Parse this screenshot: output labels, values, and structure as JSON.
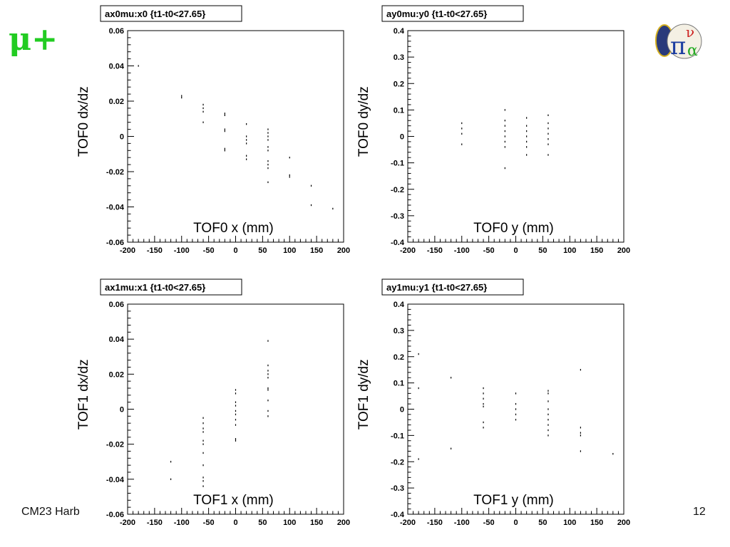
{
  "slide": {
    "title": "μ+",
    "footer_left": "CM23 Harb",
    "page_number": "12",
    "logo": "mice-pion-logo"
  },
  "chart_data": [
    {
      "type": "scatter",
      "title": "ax0mu:x0 {t1-t0<27.65}",
      "xlabel": "TOF0 x (mm)",
      "ylabel": "TOF0 dx/dz",
      "xlim": [
        -200,
        200
      ],
      "ylim": [
        -0.06,
        0.06
      ],
      "xticks": [
        -200,
        -150,
        -100,
        -50,
        0,
        50,
        100,
        150,
        200
      ],
      "xtick_labels": [
        "-200",
        "-150",
        "-100",
        "-50",
        "0",
        "50",
        "100",
        "150",
        "200"
      ],
      "yticks": [
        -0.06,
        -0.04,
        -0.02,
        0,
        0.02,
        0.04,
        0.06
      ],
      "ytick_labels": [
        "-0.06",
        "-0.04",
        "-0.02",
        "0",
        "0.02",
        "0.04",
        "0.06"
      ],
      "points": [
        [
          -180,
          0.04
        ],
        [
          -100,
          0.023
        ],
        [
          -100,
          0.022
        ],
        [
          -60,
          0.018
        ],
        [
          -60,
          0.016
        ],
        [
          -60,
          0.014
        ],
        [
          -60,
          0.008
        ],
        [
          -20,
          0.013
        ],
        [
          -20,
          0.012
        ],
        [
          -20,
          0.004
        ],
        [
          -20,
          0.003
        ],
        [
          -20,
          -0.007
        ],
        [
          -20,
          -0.008
        ],
        [
          20,
          0.007
        ],
        [
          20,
          0.0
        ],
        [
          20,
          -0.002
        ],
        [
          20,
          -0.004
        ],
        [
          20,
          -0.011
        ],
        [
          20,
          -0.013
        ],
        [
          60,
          0.004
        ],
        [
          60,
          0.002
        ],
        [
          60,
          0.0
        ],
        [
          60,
          -0.002
        ],
        [
          60,
          -0.006
        ],
        [
          60,
          -0.008
        ],
        [
          60,
          -0.014
        ],
        [
          60,
          -0.016
        ],
        [
          60,
          -0.018
        ],
        [
          60,
          -0.026
        ],
        [
          100,
          -0.012
        ],
        [
          100,
          -0.022
        ],
        [
          100,
          -0.023
        ],
        [
          140,
          -0.028
        ],
        [
          140,
          -0.039
        ],
        [
          180,
          -0.041
        ]
      ]
    },
    {
      "type": "scatter",
      "title": "ay0mu:y0 {t1-t0<27.65}",
      "xlabel": "TOF0 y (mm)",
      "ylabel": "TOF0 dy/dz",
      "xlim": [
        -200,
        200
      ],
      "ylim": [
        -0.4,
        0.4
      ],
      "xticks": [
        -200,
        -150,
        -100,
        -50,
        0,
        50,
        100,
        150,
        200
      ],
      "xtick_labels": [
        "-200",
        "-150",
        "-100",
        "-50",
        "0",
        "50",
        "100",
        "150",
        "200"
      ],
      "yticks": [
        -0.4,
        -0.3,
        -0.2,
        -0.1,
        0,
        0.1,
        0.2,
        0.3,
        0.4
      ],
      "ytick_labels": [
        "-0.4",
        "-0.3",
        "-0.2",
        "-0.1",
        "0",
        "0.1",
        "0.2",
        "0.3",
        "0.4"
      ],
      "points": [
        [
          -100,
          0.05
        ],
        [
          -100,
          0.03
        ],
        [
          -100,
          0.01
        ],
        [
          -100,
          -0.03
        ],
        [
          -20,
          0.1
        ],
        [
          -20,
          0.06
        ],
        [
          -20,
          0.04
        ],
        [
          -20,
          0.02
        ],
        [
          -20,
          0.0
        ],
        [
          -20,
          -0.02
        ],
        [
          -20,
          -0.04
        ],
        [
          -20,
          -0.12
        ],
        [
          20,
          0.07
        ],
        [
          20,
          0.04
        ],
        [
          20,
          0.02
        ],
        [
          20,
          0.0
        ],
        [
          20,
          -0.02
        ],
        [
          20,
          -0.04
        ],
        [
          20,
          -0.07
        ],
        [
          60,
          0.08
        ],
        [
          60,
          0.05
        ],
        [
          60,
          0.03
        ],
        [
          60,
          0.01
        ],
        [
          60,
          -0.01
        ],
        [
          60,
          -0.03
        ],
        [
          60,
          -0.07
        ]
      ]
    },
    {
      "type": "scatter",
      "title": "ax1mu:x1 {t1-t0<27.65}",
      "xlabel": "TOF1 x (mm)",
      "ylabel": "TOF1 dx/dz",
      "xlim": [
        -200,
        200
      ],
      "ylim": [
        -0.06,
        0.06
      ],
      "xticks": [
        -200,
        -150,
        -100,
        -50,
        0,
        50,
        100,
        150,
        200
      ],
      "xtick_labels": [
        "-200",
        "-150",
        "-100",
        "-50",
        "0",
        "50",
        "100",
        "150",
        "200"
      ],
      "yticks": [
        -0.06,
        -0.04,
        -0.02,
        0,
        0.02,
        0.04,
        0.06
      ],
      "ytick_labels": [
        "-0.06",
        "-0.04",
        "-0.02",
        "0",
        "0.02",
        "0.04",
        "0.06"
      ],
      "points": [
        [
          -120,
          -0.03
        ],
        [
          -120,
          -0.04
        ],
        [
          -60,
          -0.005
        ],
        [
          -60,
          -0.008
        ],
        [
          -60,
          -0.011
        ],
        [
          -60,
          -0.013
        ],
        [
          -60,
          -0.018
        ],
        [
          -60,
          -0.02
        ],
        [
          -60,
          -0.025
        ],
        [
          -60,
          -0.032
        ],
        [
          -60,
          -0.039
        ],
        [
          -60,
          -0.041
        ],
        [
          -60,
          -0.044
        ],
        [
          0,
          0.011
        ],
        [
          0,
          0.009
        ],
        [
          0,
          0.004
        ],
        [
          0,
          0.002
        ],
        [
          0,
          -0.001
        ],
        [
          0,
          -0.003
        ],
        [
          0,
          -0.006
        ],
        [
          0,
          -0.009
        ],
        [
          0,
          -0.017
        ],
        [
          0,
          -0.018
        ],
        [
          60,
          0.039
        ],
        [
          60,
          0.025
        ],
        [
          60,
          0.022
        ],
        [
          60,
          0.02
        ],
        [
          60,
          0.018
        ],
        [
          60,
          0.012
        ],
        [
          60,
          0.011
        ],
        [
          60,
          0.005
        ],
        [
          60,
          -0.001
        ],
        [
          60,
          -0.004
        ]
      ]
    },
    {
      "type": "scatter",
      "title": "ay1mu:y1 {t1-t0<27.65}",
      "xlabel": "TOF1 y (mm)",
      "ylabel": "TOF1 dy/dz",
      "xlim": [
        -200,
        200
      ],
      "ylim": [
        -0.4,
        0.4
      ],
      "xticks": [
        -200,
        -150,
        -100,
        -50,
        0,
        50,
        100,
        150,
        200
      ],
      "xtick_labels": [
        "-200",
        "-150",
        "-100",
        "-50",
        "0",
        "50",
        "100",
        "150",
        "200"
      ],
      "yticks": [
        -0.4,
        -0.3,
        -0.2,
        -0.1,
        0,
        0.1,
        0.2,
        0.3,
        0.4
      ],
      "ytick_labels": [
        "-0.4",
        "-0.3",
        "-0.2",
        "-0.1",
        "0",
        "0.1",
        "0.2",
        "0.3",
        "0.4"
      ],
      "points": [
        [
          -180,
          0.21
        ],
        [
          -180,
          0.08
        ],
        [
          -180,
          -0.19
        ],
        [
          -120,
          0.12
        ],
        [
          -120,
          -0.15
        ],
        [
          -60,
          0.08
        ],
        [
          -60,
          0.06
        ],
        [
          -60,
          0.04
        ],
        [
          -60,
          0.02
        ],
        [
          -60,
          0.01
        ],
        [
          -60,
          -0.05
        ],
        [
          -60,
          -0.07
        ],
        [
          0,
          0.06
        ],
        [
          0,
          0.02
        ],
        [
          0,
          0.0
        ],
        [
          0,
          -0.02
        ],
        [
          0,
          -0.04
        ],
        [
          60,
          0.07
        ],
        [
          60,
          0.06
        ],
        [
          60,
          0.03
        ],
        [
          60,
          0.0
        ],
        [
          60,
          -0.02
        ],
        [
          60,
          -0.04
        ],
        [
          60,
          -0.06
        ],
        [
          60,
          -0.08
        ],
        [
          60,
          -0.1
        ],
        [
          120,
          0.15
        ],
        [
          120,
          -0.07
        ],
        [
          120,
          -0.09
        ],
        [
          120,
          -0.1
        ],
        [
          120,
          -0.16
        ],
        [
          180,
          -0.17
        ]
      ]
    }
  ]
}
